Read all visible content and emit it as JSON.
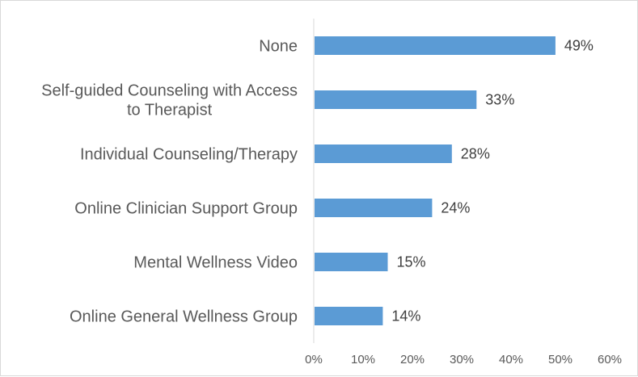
{
  "chart_data": {
    "type": "bar",
    "orientation": "horizontal",
    "title": "",
    "xlabel": "",
    "ylabel": "",
    "categories": [
      "None",
      "Self-guided Counseling with Access to Therapist",
      "Individual Counseling/Therapy",
      "Online Clinician Support Group",
      "Mental Wellness Video",
      "Online General Wellness Group"
    ],
    "category_lines": [
      [
        "None"
      ],
      [
        "Self-guided Counseling with Access",
        "to Therapist"
      ],
      [
        "Individual Counseling/Therapy"
      ],
      [
        "Online Clinician Support Group"
      ],
      [
        "Mental Wellness Video"
      ],
      [
        "Online General Wellness Group"
      ]
    ],
    "values": [
      49,
      33,
      28,
      24,
      15,
      14
    ],
    "data_labels": [
      "49%",
      "33%",
      "28%",
      "24%",
      "15%",
      "14%"
    ],
    "xlim": [
      0,
      60
    ],
    "x_ticks": [
      0,
      10,
      20,
      30,
      40,
      50,
      60
    ],
    "x_tick_labels": [
      "0%",
      "10%",
      "20%",
      "30%",
      "40%",
      "50%",
      "60%"
    ],
    "grid": false,
    "legend": "none",
    "bar_color": "#5b9bd5",
    "axis_color": "#d9d9d9"
  }
}
